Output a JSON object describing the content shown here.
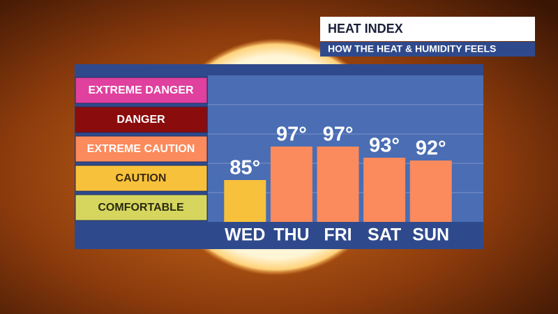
{
  "chart_data": {
    "type": "bar",
    "title": "HEAT INDEX",
    "subtitle": "HOW THE HEAT & HUMIDITY FEELS",
    "categories": [
      "WED",
      "THU",
      "FRI",
      "SAT",
      "SUN"
    ],
    "values": [
      85,
      97,
      97,
      93,
      92
    ],
    "value_labels": [
      "85°",
      "97°",
      "97°",
      "93°",
      "92°"
    ],
    "colors": [
      "#f8c13b",
      "#fb8a5c",
      "#fb8a5c",
      "#fb8a5c",
      "#fb8a5c"
    ],
    "ylim": [
      70,
      122.5
    ],
    "grid": true,
    "zones": [
      {
        "label": "EXTREME DANGER",
        "color": "#e0409e",
        "text_color": "#ffffff"
      },
      {
        "label": "DANGER",
        "color": "#8b0c0c",
        "text_color": "#ffffff"
      },
      {
        "label": "EXTREME CAUTION",
        "color": "#fb8a5c",
        "text_color": "#ffffff"
      },
      {
        "label": "CAUTION",
        "color": "#f8c13b",
        "text_color": "#3a2a10"
      },
      {
        "label": "COMFORTABLE",
        "color": "#d6d65e",
        "text_color": "#2a2a10"
      }
    ]
  }
}
